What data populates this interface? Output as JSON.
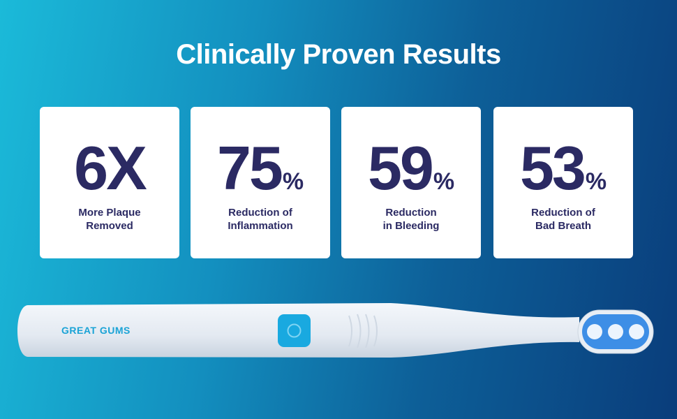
{
  "title": "Clinically Proven Results",
  "cards": [
    {
      "value": "6X",
      "label": [
        "More Plaque",
        "Removed"
      ]
    },
    {
      "value": "75",
      "unit": "%",
      "label": [
        "Reduction of",
        "Inflammation"
      ]
    },
    {
      "value": "59",
      "unit": "%",
      "label": [
        "Reduction",
        "in Bleeding"
      ]
    },
    {
      "value": "53",
      "unit": "%",
      "label": [
        "Reduction of",
        "Bad Breath"
      ]
    }
  ],
  "brand": "GREAT GUMS"
}
